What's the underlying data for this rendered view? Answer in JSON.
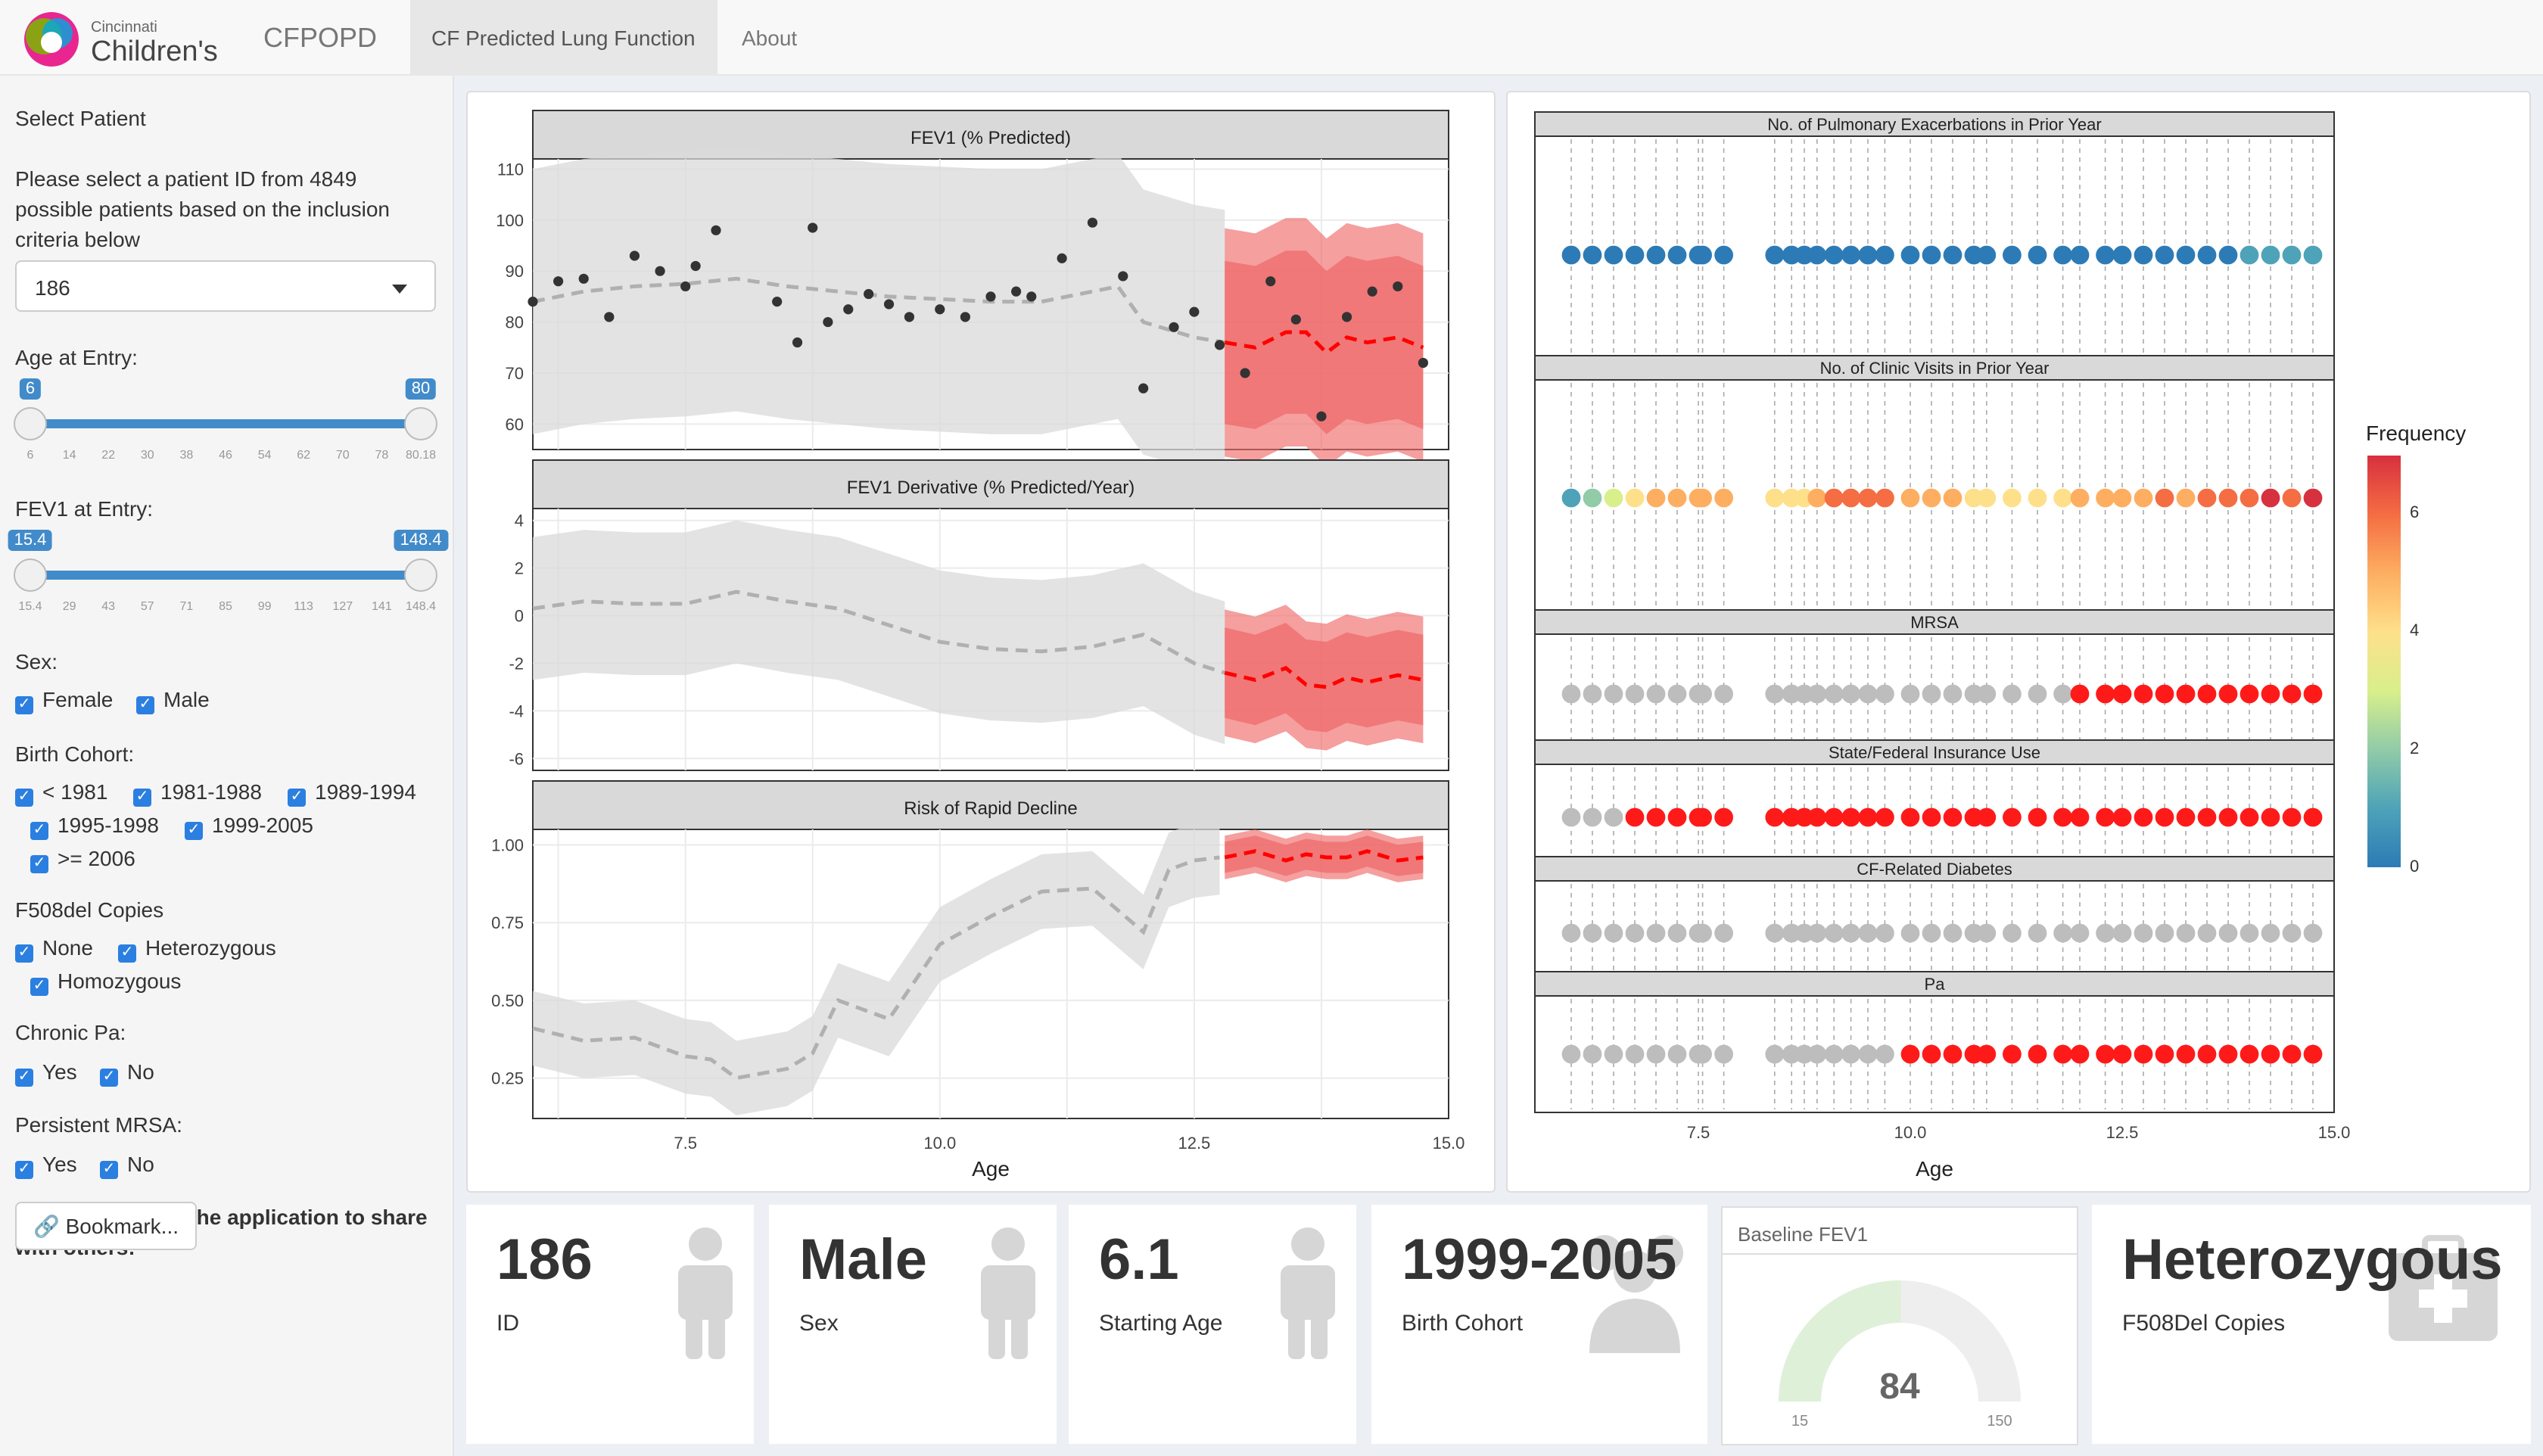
{
  "nav": {
    "brand": "CFPOPD",
    "logo_small": "Cincinnati",
    "logo_big": "Children's",
    "tabs": [
      "CF Predicted Lung Function",
      "About"
    ]
  },
  "sidebar": {
    "title": "Select Patient",
    "description": "Please select a patient ID from 4849 possible patients based on the inclusion criteria below",
    "desc_line1": "Please select a patient ID from 4849",
    "desc_line2": "possible patients based on the inclusion",
    "desc_line3": "criteria below",
    "patient_id": "186",
    "age_label": "Age at Entry:",
    "age_min": "6",
    "age_max": "80",
    "age_range": [
      0,
      1
    ],
    "age_ticks": [
      "6",
      "14",
      "22",
      "30",
      "38",
      "46",
      "54",
      "62",
      "70",
      "78",
      "80.18"
    ],
    "fev_label": "FEV1 at Entry:",
    "fev_min": "15.4",
    "fev_max": "148.4",
    "fev_range": [
      0,
      1
    ],
    "fev_ticks": [
      "15.4",
      "29",
      "43",
      "57",
      "71",
      "85",
      "99",
      "113",
      "127",
      "141",
      "148.4"
    ],
    "sex_label": "Sex:",
    "sex": [
      "Female",
      "Male"
    ],
    "cohort_label": "Birth Cohort:",
    "cohort": [
      "< 1981",
      "1981-1988",
      "1989-1994",
      "1995-1998",
      "1999-2005",
      ">= 2006"
    ],
    "f508_label": "F508del Copies",
    "f508": [
      "None",
      "Heterozygous",
      "Homozygous"
    ],
    "pa_label": "Chronic Pa:",
    "pa": [
      "Yes",
      "No"
    ],
    "mrsa_label": "Persistent MRSA:",
    "mrsa": [
      "Yes",
      "No"
    ],
    "save_line1": "Save the state of the application to share",
    "save_line2": "with others:",
    "bookmark": "Bookmark..."
  },
  "value_boxes": [
    {
      "value": "186",
      "label": "ID",
      "icon": "person-icon"
    },
    {
      "value": "Male",
      "label": "Sex",
      "icon": "person-icon"
    },
    {
      "value": "6.1",
      "label": "Starting Age",
      "icon": "person-icon"
    },
    {
      "value": "1999-2005",
      "label": "Birth Cohort",
      "icon": "users-icon"
    },
    {
      "value": "Heterozygous",
      "label": "F508Del Copies",
      "icon": "medkit-icon"
    }
  ],
  "gauge": {
    "title": "Baseline FEV1",
    "value": "84",
    "min": "15",
    "max": "150",
    "fraction": 0.5037
  },
  "colors": {
    "band_gray": "#d9d9d9",
    "band_red": "#ef6b6b",
    "pred_red": "#ff0000",
    "obs_dot": "#333333",
    "accent": "#428bca",
    "gray_dot": "#bdbdbd",
    "red_dot": "#ff1a1a"
  },
  "chart_data": [
    {
      "type": "line",
      "title": "FEV1 (% Predicted)",
      "xlabel": "Age",
      "ylabel": "",
      "xlim": [
        6,
        15
      ],
      "ylim": [
        55,
        112
      ],
      "xticks": [
        "7.5",
        "10.0",
        "12.5",
        "15.0"
      ],
      "yticks": [
        "110",
        "100",
        "90",
        "80",
        "70",
        "60"
      ],
      "observed_x": [
        6.0,
        6.25,
        6.5,
        6.75,
        7.0,
        7.25,
        7.5,
        7.6,
        7.8,
        8.4,
        8.6,
        8.75,
        8.9,
        9.1,
        9.3,
        9.5,
        9.7,
        10.0,
        10.25,
        10.5,
        10.75,
        10.9,
        11.2,
        11.5,
        11.8,
        12.0,
        12.3,
        12.5,
        12.75,
        13.0,
        13.25,
        13.5,
        13.75,
        14.0,
        14.25,
        14.5,
        14.75
      ],
      "observed_y": [
        84,
        88,
        88.5,
        81,
        93,
        90,
        87,
        91,
        98,
        84,
        76,
        98.5,
        80,
        82.5,
        85.5,
        83.5,
        81,
        82.5,
        81,
        85,
        86,
        85,
        92.5,
        99.5,
        89,
        67,
        79,
        82,
        75.5,
        70,
        88,
        80.5,
        61.5,
        81,
        86,
        87,
        72
      ],
      "mean_x": [
        6.0,
        6.5,
        7.0,
        7.5,
        8.0,
        8.5,
        9.0,
        9.5,
        10.0,
        10.5,
        11.0,
        11.5,
        11.75,
        12.0,
        12.5,
        12.8
      ],
      "mean_y": [
        84,
        86,
        87,
        87.5,
        88.5,
        87,
        86,
        85,
        84.5,
        84,
        84,
        86,
        87,
        80,
        77,
        76
      ],
      "pred_x": [
        12.8,
        13.1,
        13.4,
        13.6,
        13.8,
        14.0,
        14.2,
        14.5,
        14.75
      ],
      "pred_y": [
        76,
        75,
        78,
        78,
        74,
        77,
        76,
        77,
        75
      ]
    },
    {
      "type": "line",
      "title": "FEV1 Derivative (% Predicted/Year)",
      "xlabel": "Age",
      "xlim": [
        6,
        15
      ],
      "ylim": [
        -6.5,
        4.5
      ],
      "yticks": [
        "4",
        "2",
        "0",
        "-2",
        "-4",
        "-6"
      ],
      "mean_x": [
        6.0,
        6.5,
        7.0,
        7.5,
        8.0,
        8.5,
        9.0,
        9.5,
        10.0,
        10.5,
        11.0,
        11.5,
        12.0,
        12.5,
        12.8
      ],
      "mean_y": [
        0.3,
        0.6,
        0.5,
        0.5,
        1.0,
        0.6,
        0.3,
        -0.4,
        -1.1,
        -1.4,
        -1.5,
        -1.3,
        -0.8,
        -2.0,
        -2.4
      ],
      "pred_x": [
        12.8,
        13.1,
        13.4,
        13.6,
        13.8,
        14.0,
        14.2,
        14.5,
        14.75
      ],
      "pred_y": [
        -2.4,
        -2.7,
        -2.2,
        -2.9,
        -3.0,
        -2.6,
        -2.8,
        -2.5,
        -2.7
      ]
    },
    {
      "type": "line",
      "title": "Risk of Rapid Decline",
      "xlabel": "Age",
      "xlim": [
        6,
        15
      ],
      "ylim": [
        0.12,
        1.05
      ],
      "yticks": [
        "1.00",
        "0.75",
        "0.50",
        "0.25"
      ],
      "mean_x": [
        6.0,
        6.5,
        7.0,
        7.5,
        7.75,
        8.0,
        8.5,
        8.75,
        9.0,
        9.5,
        10.0,
        10.5,
        11.0,
        11.5,
        12.0,
        12.25,
        12.5,
        12.75
      ],
      "mean_y": [
        0.41,
        0.37,
        0.38,
        0.32,
        0.31,
        0.25,
        0.28,
        0.33,
        0.5,
        0.44,
        0.68,
        0.77,
        0.85,
        0.86,
        0.72,
        0.92,
        0.95,
        0.96
      ],
      "pred_x": [
        12.8,
        13.1,
        13.4,
        13.6,
        13.8,
        14.0,
        14.2,
        14.5,
        14.75
      ],
      "pred_y": [
        0.96,
        0.98,
        0.95,
        0.97,
        0.96,
        0.96,
        0.98,
        0.95,
        0.96
      ]
    },
    {
      "type": "scatter",
      "panels": [
        "No. of Pulmonary Exacerbations in Prior Year",
        "No. of Clinic Visits in Prior Year",
        "MRSA",
        "State/Federal Insurance Use",
        "CF-Related Diabetes",
        "Pa"
      ],
      "xlabel": "Age",
      "xlim": [
        6,
        15
      ],
      "xticks": [
        "7.5",
        "10.0",
        "12.5",
        "15.0"
      ],
      "legend_title": "Frequency",
      "legend_ticks": [
        "6",
        "4",
        "2",
        "0"
      ],
      "ages": [
        6.0,
        6.25,
        6.5,
        6.75,
        7.0,
        7.25,
        7.5,
        7.55,
        7.8,
        8.4,
        8.6,
        8.75,
        8.9,
        9.1,
        9.3,
        9.5,
        9.7,
        10.0,
        10.25,
        10.5,
        10.75,
        10.9,
        11.2,
        11.5,
        11.8,
        12.0,
        12.3,
        12.5,
        12.75,
        13.0,
        13.25,
        13.5,
        13.75,
        14.0,
        14.25,
        14.5,
        14.75
      ],
      "exacerbations": [
        0,
        0,
        0,
        0,
        0,
        0,
        0,
        0,
        0,
        0,
        0,
        0,
        0,
        0,
        0,
        0,
        0,
        0,
        0,
        0,
        0,
        0,
        0,
        0,
        0,
        0,
        0,
        0,
        0,
        0,
        0,
        0,
        0,
        1,
        1,
        1,
        1
      ],
      "clinic_visits": [
        1,
        2,
        3,
        4,
        5,
        5,
        5,
        5,
        5,
        4,
        4,
        4,
        5,
        6,
        6,
        6,
        6,
        5,
        5,
        5,
        4,
        4,
        4,
        4,
        4,
        5,
        5,
        5,
        5,
        6,
        5,
        6,
        6,
        6,
        7,
        6,
        7
      ],
      "mrsa": [
        0,
        0,
        0,
        0,
        0,
        0,
        0,
        0,
        0,
        0,
        0,
        0,
        0,
        0,
        0,
        0,
        0,
        0,
        0,
        0,
        0,
        0,
        0,
        0,
        0,
        1,
        1,
        1,
        1,
        1,
        1,
        1,
        1,
        1,
        1,
        1,
        1
      ],
      "insurance": [
        0,
        0,
        0,
        1,
        1,
        1,
        1,
        1,
        1,
        1,
        1,
        1,
        1,
        1,
        1,
        1,
        1,
        1,
        1,
        1,
        1,
        1,
        1,
        1,
        1,
        1,
        1,
        1,
        1,
        1,
        1,
        1,
        1,
        1,
        1,
        1,
        1
      ],
      "diabetes": [
        0,
        0,
        0,
        0,
        0,
        0,
        0,
        0,
        0,
        0,
        0,
        0,
        0,
        0,
        0,
        0,
        0,
        0,
        0,
        0,
        0,
        0,
        0,
        0,
        0,
        0,
        0,
        0,
        0,
        0,
        0,
        0,
        0,
        0,
        0,
        0,
        0
      ],
      "pa": [
        0,
        0,
        0,
        0,
        0,
        0,
        0,
        0,
        0,
        0,
        0,
        0,
        0,
        0,
        0,
        0,
        0,
        1,
        1,
        1,
        1,
        1,
        1,
        1,
        1,
        1,
        1,
        1,
        1,
        1,
        1,
        1,
        1,
        1,
        1,
        1,
        1
      ]
    }
  ]
}
